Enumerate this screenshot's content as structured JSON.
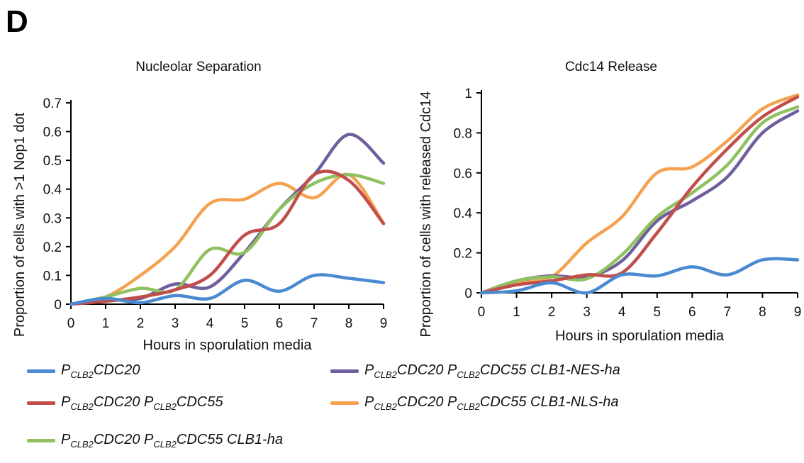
{
  "panel_letter": "D",
  "colors": {
    "blue": "#4a8ad0",
    "red": "#c24e4b",
    "green": "#8fc160",
    "purple": "#705e9e",
    "orange": "#f5a250",
    "axis": "#000000"
  },
  "legend": [
    {
      "color_key": "blue",
      "parts": [
        {
          "t": "P"
        },
        {
          "t": "CLB2",
          "sub": true
        },
        {
          "t": "CDC20"
        }
      ]
    },
    {
      "color_key": "red",
      "parts": [
        {
          "t": "P"
        },
        {
          "t": "CLB2",
          "sub": true
        },
        {
          "t": "CDC20 P"
        },
        {
          "t": "CLB2",
          "sub": true
        },
        {
          "t": "CDC55"
        }
      ]
    },
    {
      "color_key": "green",
      "parts": [
        {
          "t": "P"
        },
        {
          "t": "CLB2",
          "sub": true
        },
        {
          "t": "CDC20 P"
        },
        {
          "t": "CLB2",
          "sub": true
        },
        {
          "t": "CDC55 CLB1-ha"
        }
      ]
    },
    {
      "color_key": "purple",
      "parts": [
        {
          "t": "P"
        },
        {
          "t": "CLB2",
          "sub": true
        },
        {
          "t": "CDC20 P"
        },
        {
          "t": "CLB2",
          "sub": true
        },
        {
          "t": "CDC55 CLB1-NES-ha"
        }
      ]
    },
    {
      "color_key": "orange",
      "parts": [
        {
          "t": "P"
        },
        {
          "t": "CLB2",
          "sub": true
        },
        {
          "t": "CDC20 P"
        },
        {
          "t": "CLB2",
          "sub": true
        },
        {
          "t": "CDC55 CLB1-NLS-ha"
        }
      ]
    }
  ],
  "chart_data": [
    {
      "type": "line",
      "title": "Nucleolar Separation",
      "xlabel": "Hours in sporulation media",
      "ylabel": "Proportion of cells with >1 Nop1 dot",
      "x": [
        0,
        1,
        2,
        3,
        4,
        5,
        6,
        7,
        8,
        9
      ],
      "xticks": [
        "0",
        "1",
        "2",
        "3",
        "4",
        "5",
        "6",
        "7",
        "8",
        "9"
      ],
      "yticks": [
        "0",
        "0.1",
        "0.2",
        "0.3",
        "0.4",
        "0.5",
        "0.6",
        "0.7"
      ],
      "ylim": [
        0,
        0.7
      ],
      "xlim": [
        0,
        9
      ],
      "grid": false,
      "series": [
        {
          "color_key": "blue",
          "values": [
            0,
            0.02,
            0.005,
            0.03,
            0.02,
            0.083,
            0.045,
            0.1,
            0.09,
            0.075
          ]
        },
        {
          "color_key": "red",
          "values": [
            0,
            0.01,
            0.025,
            0.05,
            0.1,
            0.24,
            0.28,
            0.45,
            0.43,
            0.28
          ]
        },
        {
          "color_key": "green",
          "values": [
            0,
            0.025,
            0.055,
            0.05,
            0.19,
            0.18,
            0.33,
            0.42,
            0.45,
            0.42
          ]
        },
        {
          "color_key": "purple",
          "values": [
            0,
            0.015,
            0.02,
            0.07,
            0.06,
            0.18,
            0.33,
            0.45,
            0.59,
            0.49
          ]
        },
        {
          "color_key": "orange",
          "values": [
            0,
            0.025,
            0.1,
            0.2,
            0.35,
            0.365,
            0.42,
            0.37,
            0.45,
            0.28
          ]
        }
      ]
    },
    {
      "type": "line",
      "title": "Cdc14 Release",
      "xlabel": "Hours in sporulation media",
      "ylabel": "Proportion of cells with released Cdc14",
      "x": [
        0,
        1,
        2,
        3,
        4,
        5,
        6,
        7,
        8,
        9
      ],
      "xticks": [
        "0",
        "1",
        "2",
        "3",
        "4",
        "5",
        "6",
        "7",
        "8",
        "9"
      ],
      "yticks": [
        "0",
        "0.2",
        "0.4",
        "0.6",
        "0.8",
        "1"
      ],
      "ylim": [
        0,
        1
      ],
      "xlim": [
        0,
        9
      ],
      "grid": false,
      "series": [
        {
          "color_key": "blue",
          "values": [
            0,
            0.01,
            0.05,
            0,
            0.09,
            0.085,
            0.13,
            0.09,
            0.165,
            0.165
          ]
        },
        {
          "color_key": "red",
          "values": [
            0,
            0.04,
            0.06,
            0.09,
            0.1,
            0.3,
            0.53,
            0.72,
            0.88,
            0.98
          ]
        },
        {
          "color_key": "green",
          "values": [
            0,
            0.06,
            0.08,
            0.07,
            0.19,
            0.38,
            0.5,
            0.64,
            0.85,
            0.93
          ]
        },
        {
          "color_key": "purple",
          "values": [
            0,
            0.06,
            0.085,
            0.08,
            0.16,
            0.36,
            0.46,
            0.58,
            0.8,
            0.91
          ]
        },
        {
          "color_key": "orange",
          "values": [
            0,
            0.05,
            0.08,
            0.25,
            0.38,
            0.6,
            0.63,
            0.76,
            0.92,
            0.99
          ]
        }
      ]
    }
  ]
}
